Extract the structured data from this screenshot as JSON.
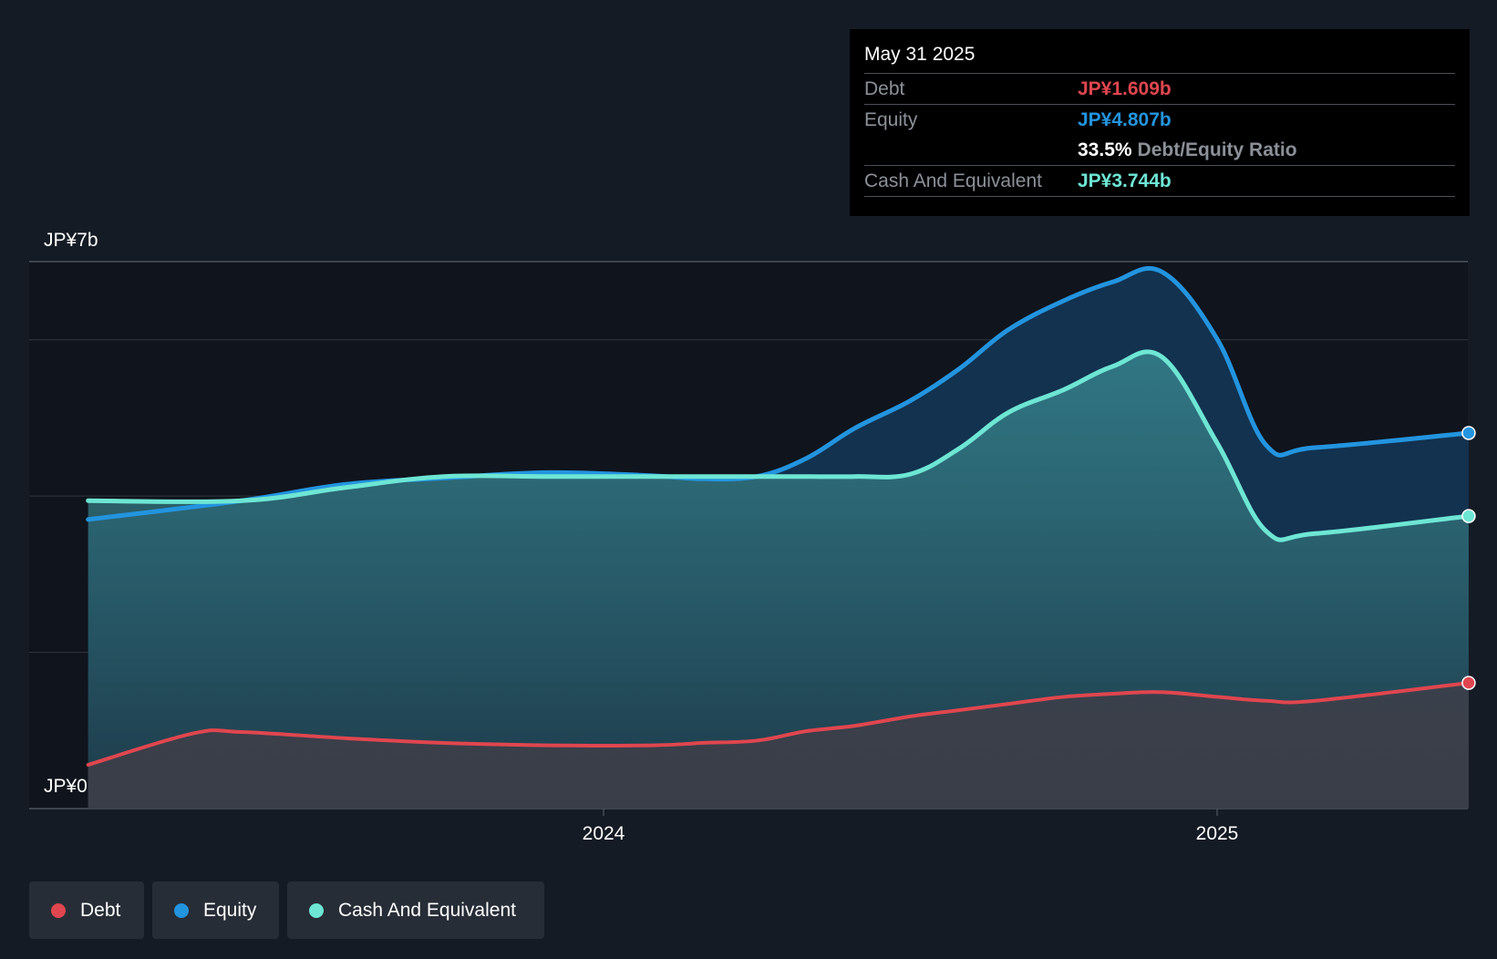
{
  "tooltip": {
    "date": "May 31 2025",
    "debt_label": "Debt",
    "debt_value": "JP¥1.609b",
    "equity_label": "Equity",
    "equity_value": "JP¥4.807b",
    "ratio_value": "33.5%",
    "ratio_label": "Debt/Equity Ratio",
    "cash_label": "Cash And Equivalent",
    "cash_value": "JP¥3.744b"
  },
  "legend": {
    "debt": "Debt",
    "equity": "Equity",
    "cash": "Cash And Equivalent"
  },
  "colors": {
    "debt": "#e0464f",
    "equity": "#2394df",
    "cash": "#6ee6d4",
    "background": "#151b24",
    "plot_background": "#10141c"
  },
  "chart_data": {
    "type": "area",
    "title": "",
    "xlabel": "",
    "ylabel": "",
    "y_axis_labels": {
      "top": "JP¥7b",
      "bottom": "JP¥0"
    },
    "ylim": [
      0,
      7
    ],
    "xlim": [
      2023.065,
      2025.41
    ],
    "x_ticks": [
      {
        "value": 2024.0,
        "label": "2024"
      },
      {
        "value": 2025.0,
        "label": "2025"
      }
    ],
    "y_gridlines": [
      0,
      2,
      4,
      6,
      7
    ],
    "series": [
      {
        "name": "Equity",
        "key": "equity",
        "x": [
          2023.16,
          2023.41,
          2023.58,
          2023.74,
          2023.91,
          2024.08,
          2024.16,
          2024.25,
          2024.33,
          2024.41,
          2024.5,
          2024.58,
          2024.66,
          2024.75,
          2024.83,
          2024.91,
          2025.0,
          2025.08,
          2025.16,
          2025.41
        ],
        "values": [
          3.7,
          3.94,
          4.15,
          4.23,
          4.3,
          4.26,
          4.22,
          4.25,
          4.48,
          4.87,
          5.22,
          5.63,
          6.13,
          6.5,
          6.74,
          6.87,
          6.01,
          4.65,
          4.62,
          4.807
        ]
      },
      {
        "name": "Cash And Equivalent",
        "key": "cash",
        "x": [
          2023.16,
          2023.41,
          2023.58,
          2023.74,
          2023.91,
          2024.08,
          2024.16,
          2024.25,
          2024.33,
          2024.41,
          2024.5,
          2024.58,
          2024.66,
          2024.75,
          2024.83,
          2024.91,
          2025.0,
          2025.08,
          2025.16,
          2025.41
        ],
        "values": [
          3.94,
          3.94,
          4.11,
          4.25,
          4.25,
          4.25,
          4.25,
          4.25,
          4.25,
          4.25,
          4.28,
          4.61,
          5.07,
          5.36,
          5.66,
          5.78,
          4.68,
          3.55,
          3.52,
          3.744
        ]
      },
      {
        "name": "Debt",
        "key": "debt",
        "x": [
          2023.16,
          2023.33,
          2023.41,
          2023.58,
          2023.74,
          2023.91,
          2024.08,
          2024.16,
          2024.25,
          2024.33,
          2024.41,
          2024.5,
          2024.58,
          2024.66,
          2024.75,
          2024.83,
          2024.91,
          2025.0,
          2025.08,
          2025.16,
          2025.41
        ],
        "values": [
          0.56,
          0.96,
          0.98,
          0.9,
          0.84,
          0.81,
          0.81,
          0.84,
          0.87,
          0.99,
          1.06,
          1.18,
          1.26,
          1.34,
          1.43,
          1.47,
          1.49,
          1.43,
          1.38,
          1.38,
          1.609
        ]
      }
    ]
  }
}
